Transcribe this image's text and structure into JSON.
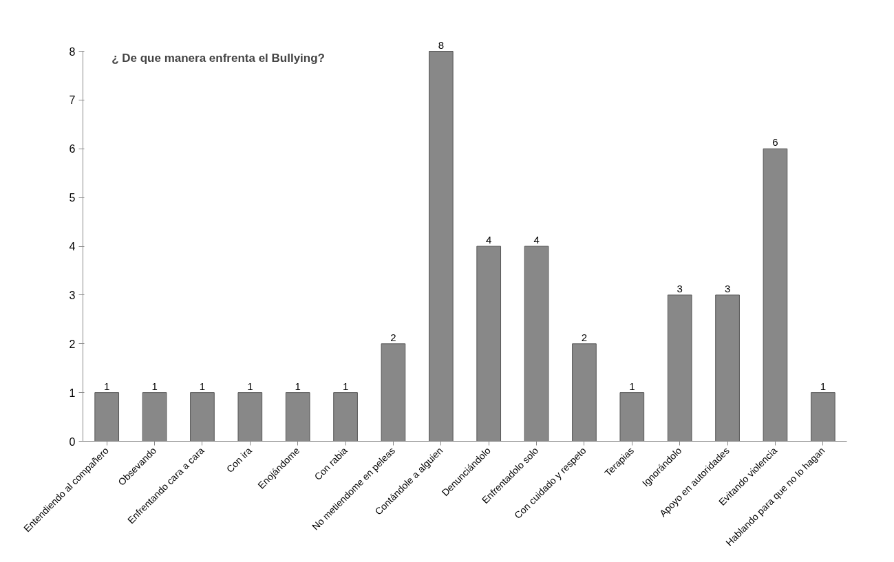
{
  "chart_data": {
    "type": "bar",
    "title": "¿ De que manera enfrenta el Bullying?",
    "categories": [
      "Entendiendo al compañero",
      "Obsevando",
      "Enfrentando cara a cara",
      "Con ira",
      "Enojándome",
      "Con rabia",
      "No metiendome en peleas",
      "Contándole a alguien",
      "Denunciándolo",
      "Enfrentadolo solo",
      "Con cuidado y respeto",
      "Terapias",
      "Ignorándolo",
      "Apoyo en autoridades",
      "Evitando violencia",
      "Hablando para que no lo hagan"
    ],
    "values": [
      1,
      1,
      1,
      1,
      1,
      1,
      2,
      8,
      4,
      4,
      2,
      1,
      3,
      3,
      6,
      1
    ],
    "color": "#888888",
    "ylim": [
      0,
      8
    ],
    "yticks": [
      0,
      1,
      2,
      3,
      4,
      5,
      6,
      7,
      8
    ],
    "grid": false,
    "data_labels": true
  }
}
